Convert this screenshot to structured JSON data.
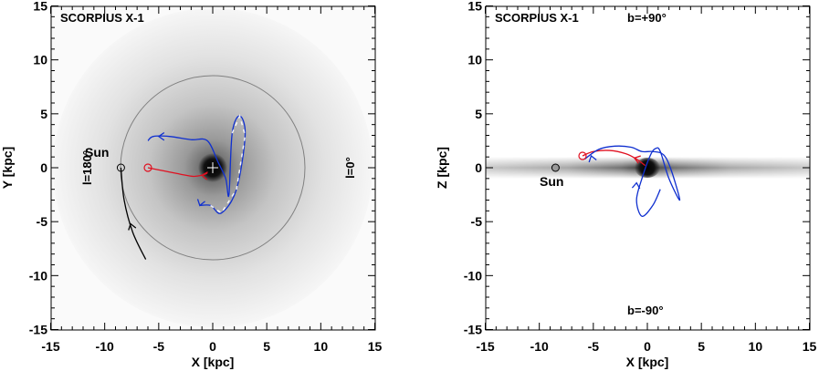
{
  "colors": {
    "orbit_past": "#e01020",
    "orbit_future": "#1030d0",
    "sun_orbit": "#000000",
    "solar_circle": "#808080"
  },
  "left": {
    "title": "SCORPIUS X-1",
    "xlabel": "X [kpc]",
    "ylabel": "Y [kpc]",
    "sun_label": "Sun",
    "l180": "l=180°",
    "l0": "l=0°",
    "xticks": [
      "-15",
      "-10",
      "-5",
      "0",
      "5",
      "10",
      "15"
    ],
    "yticks": [
      "15",
      "10",
      "5",
      "0",
      "-5",
      "-10",
      "-15"
    ]
  },
  "right": {
    "title": "SCORPIUS X-1",
    "b_top": "b=+90°",
    "b_bottom": "b=-90°",
    "xlabel": "X [kpc]",
    "ylabel": "Z [kpc]",
    "sun_label": "Sun",
    "xticks": [
      "-15",
      "-10",
      "-5",
      "0",
      "5",
      "10",
      "15"
    ],
    "yticks": [
      "15",
      "10",
      "5",
      "0",
      "-5",
      "-10",
      "-15"
    ]
  },
  "chart_data": [
    {
      "type": "line",
      "title": "SCORPIUS X-1",
      "xlabel": "X [kpc]",
      "ylabel": "Y [kpc]",
      "xlim": [
        -15,
        15
      ],
      "ylim": [
        -15,
        15
      ],
      "annotations": [
        "Sun",
        "l=180°",
        "l=0°"
      ],
      "series": [
        {
          "x": [
            -6.0,
            -4.5,
            -3.0,
            -1.8,
            -1.0,
            -0.5
          ],
          "y": [
            0.0,
            -0.3,
            -0.6,
            -0.8,
            -0.7,
            -0.5
          ]
        },
        {
          "x": [
            -6.0,
            -5.5,
            -4.0,
            -2.0,
            -0.5,
            0.5,
            1.2,
            1.5,
            1.8,
            2.5,
            3.0,
            2.2,
            0.8,
            -0.2,
            -1.2
          ],
          "y": [
            2.5,
            2.9,
            2.9,
            2.6,
            2.5,
            0.5,
            -1.0,
            -2.5,
            3.2,
            4.8,
            3.0,
            -2.0,
            -4.2,
            -3.5,
            -3.5
          ]
        },
        {
          "x": [
            -8.5,
            -8.2,
            -7.4,
            -6.2
          ],
          "y": [
            0.0,
            -3.0,
            -6.0,
            -8.5
          ]
        }
      ],
      "points": {
        "sun": [
          -8.5,
          0.0
        ],
        "source_now": [
          -6.0,
          0.0
        ]
      }
    },
    {
      "type": "line",
      "title": "SCORPIUS X-1",
      "xlabel": "X [kpc]",
      "ylabel": "Z [kpc]",
      "xlim": [
        -15,
        15
      ],
      "ylim": [
        -15,
        15
      ],
      "annotations": [
        "b=+90°",
        "b=-90°",
        "Sun"
      ],
      "series": [
        {
          "x": [
            -6.0,
            -5.0,
            -3.5,
            -2.0,
            -1.0,
            -0.2
          ],
          "y": [
            1.1,
            1.5,
            1.6,
            1.3,
            0.8,
            0.2
          ]
        },
        {
          "x": [
            -5.8,
            -4.5,
            -3.0,
            -1.5,
            -0.5,
            0.5,
            1.5,
            2.2,
            3.0,
            2.0,
            1.2,
            0.8,
            0.3,
            -0.5,
            -1.0,
            -0.5,
            0.5,
            1.2
          ],
          "y": [
            0.8,
            1.7,
            2.0,
            1.9,
            1.5,
            1.5,
            1.2,
            -0.2,
            -3.0,
            -1.0,
            1.5,
            1.8,
            1.2,
            -1.0,
            -3.0,
            -4.5,
            -3.5,
            -2.0
          ]
        }
      ],
      "points": {
        "sun": [
          -8.5,
          0.0
        ],
        "source_now": [
          -6.0,
          1.1
        ]
      }
    }
  ]
}
